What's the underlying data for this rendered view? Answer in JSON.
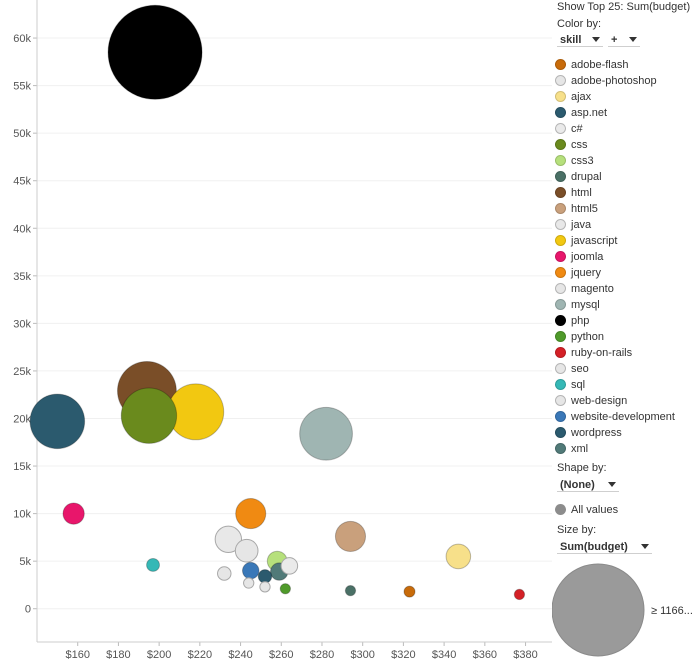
{
  "chart_data": {
    "type": "scatter",
    "title": "",
    "xlabel": "",
    "ylabel": "",
    "xlim": [
      140,
      393
    ],
    "ylim": [
      -3500,
      64000
    ],
    "x_ticks": [
      160,
      180,
      200,
      220,
      240,
      260,
      280,
      300,
      320,
      340,
      360,
      380
    ],
    "x_tick_labels": [
      "$160",
      "$180",
      "$200",
      "$220",
      "$240",
      "$260",
      "$280",
      "$300",
      "$320",
      "$340",
      "$360",
      "$380"
    ],
    "y_ticks": [
      0,
      5000,
      10000,
      15000,
      20000,
      25000,
      30000,
      35000,
      40000,
      45000,
      50000,
      55000,
      60000
    ],
    "y_tick_labels": [
      "0",
      "5k",
      "10k",
      "15k",
      "20k",
      "25k",
      "30k",
      "35k",
      "40k",
      "45k",
      "50k",
      "55k",
      "60k"
    ],
    "points": [
      {
        "skill": "php",
        "x": 198,
        "y": 58500,
        "size": 58500
      },
      {
        "skill": "html",
        "x": 194,
        "y": 22900,
        "size": 22900
      },
      {
        "skill": "css",
        "x": 195,
        "y": 20300,
        "size": 20300
      },
      {
        "skill": "javascript",
        "x": 218,
        "y": 20700,
        "size": 20700
      },
      {
        "skill": "wordpress",
        "x": 150,
        "y": 19700,
        "size": 19700
      },
      {
        "skill": "mysql",
        "x": 282,
        "y": 18400,
        "size": 18400
      },
      {
        "skill": "joomla",
        "x": 158,
        "y": 10000,
        "size": 3000
      },
      {
        "skill": "jquery",
        "x": 245,
        "y": 10000,
        "size": 6000
      },
      {
        "skill": "html5",
        "x": 294,
        "y": 7600,
        "size": 6000
      },
      {
        "skill": "ajax",
        "x": 347,
        "y": 5500,
        "size": 4000
      },
      {
        "skill": "java",
        "x": 234,
        "y": 7300,
        "size": 4600
      },
      {
        "skill": "adobe-photoshop",
        "x": 243,
        "y": 6100,
        "size": 3400
      },
      {
        "skill": "css3",
        "x": 258,
        "y": 5000,
        "size": 2600
      },
      {
        "skill": "c#",
        "x": 264,
        "y": 4500,
        "size": 1800
      },
      {
        "skill": "xml",
        "x": 259,
        "y": 3900,
        "size": 2000
      },
      {
        "skill": "website-development",
        "x": 245,
        "y": 4000,
        "size": 1800
      },
      {
        "skill": "asp.net",
        "x": 252,
        "y": 3400,
        "size": 1200
      },
      {
        "skill": "magento",
        "x": 232,
        "y": 3700,
        "size": 1200
      },
      {
        "skill": "sql",
        "x": 197,
        "y": 4600,
        "size": 1100
      },
      {
        "skill": "seo",
        "x": 244,
        "y": 2700,
        "size": 700
      },
      {
        "skill": "web-design",
        "x": 252,
        "y": 2300,
        "size": 700
      },
      {
        "skill": "python",
        "x": 262,
        "y": 2100,
        "size": 700
      },
      {
        "skill": "drupal",
        "x": 294,
        "y": 1900,
        "size": 700
      },
      {
        "skill": "adobe-flash",
        "x": 323,
        "y": 1800,
        "size": 800
      },
      {
        "skill": "ruby-on-rails",
        "x": 377,
        "y": 1500,
        "size": 700
      }
    ],
    "legend": [
      {
        "label": "adobe-flash",
        "color": "#c86b0a"
      },
      {
        "label": "adobe-photoshop",
        "color": "#e6e6e6"
      },
      {
        "label": "ajax",
        "color": "#f7e08a"
      },
      {
        "label": "asp.net",
        "color": "#2b5a6e"
      },
      {
        "label": "c#",
        "color": "#eaeaea"
      },
      {
        "label": "css",
        "color": "#6a8a1d"
      },
      {
        "label": "css3",
        "color": "#b6e07c"
      },
      {
        "label": "drupal",
        "color": "#4a7066"
      },
      {
        "label": "html",
        "color": "#7a4e28"
      },
      {
        "label": "html5",
        "color": "#c9a07c"
      },
      {
        "label": "java",
        "color": "#e8e8e8"
      },
      {
        "label": "javascript",
        "color": "#f2c811"
      },
      {
        "label": "joomla",
        "color": "#e8166b"
      },
      {
        "label": "jquery",
        "color": "#f08a12"
      },
      {
        "label": "magento",
        "color": "#e6e6e6"
      },
      {
        "label": "mysql",
        "color": "#9fb5b2"
      },
      {
        "label": "php",
        "color": "#000000"
      },
      {
        "label": "python",
        "color": "#4f9a2a"
      },
      {
        "label": "ruby-on-rails",
        "color": "#d42026"
      },
      {
        "label": "seo",
        "color": "#e6e6e6"
      },
      {
        "label": "sql",
        "color": "#35b8b6"
      },
      {
        "label": "web-design",
        "color": "#e6e6e6"
      },
      {
        "label": "website-development",
        "color": "#3a78b8"
      },
      {
        "label": "wordpress",
        "color": "#2b5a6e"
      },
      {
        "label": "xml",
        "color": "#517a78"
      }
    ]
  },
  "sidebar": {
    "top_label": "Show Top 25: Sum(budget)",
    "color_by_label": "Color by:",
    "color_by_value": "skill",
    "color_by_plus": "+",
    "shape_by_label": "Shape by:",
    "shape_by_value": "(None)",
    "all_values_label": "All values",
    "size_by_label": "Size by:",
    "size_by_value": "Sum(budget)",
    "size_legend_label": "≥ 1166..."
  }
}
